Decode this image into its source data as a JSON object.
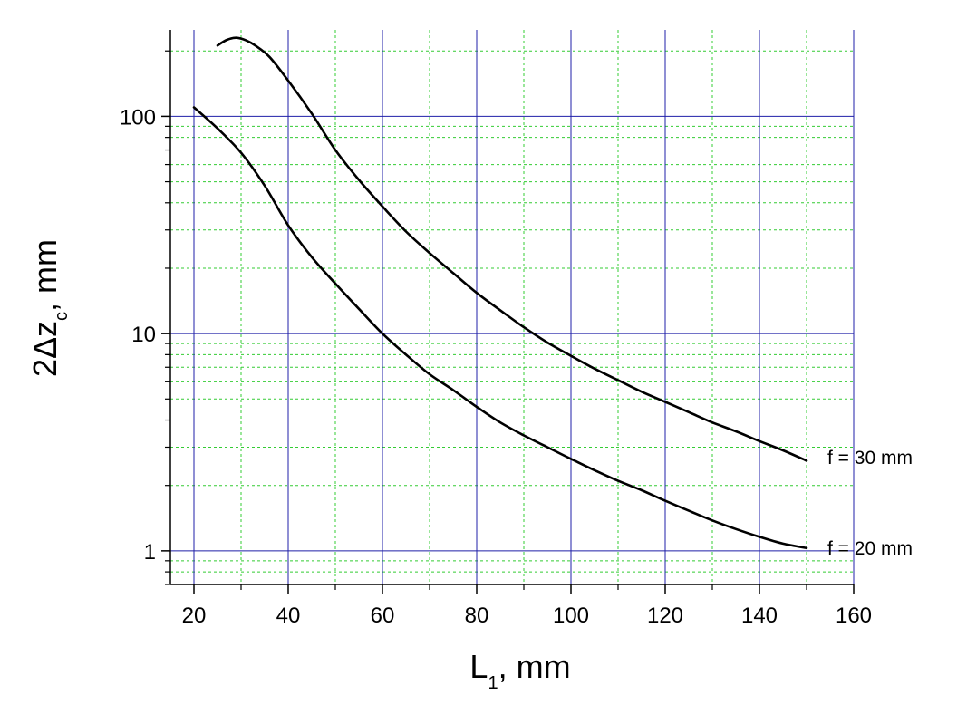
{
  "chart_data": {
    "type": "line",
    "title": "",
    "xlabel": {
      "main": "L",
      "sub": "1",
      "suffix": ", mm"
    },
    "ylabel": {
      "main": "2Δz",
      "sub": "c",
      "suffix": ", mm"
    },
    "xlim": [
      15,
      160
    ],
    "ylim": [
      0.7,
      250
    ],
    "yscale": "log",
    "x_ticks": [
      20,
      40,
      60,
      80,
      100,
      120,
      140,
      160
    ],
    "x_tick_labels": [
      "20",
      "40",
      "60",
      "80",
      "100",
      "120",
      "140",
      "160"
    ],
    "y_ticks": [
      1,
      10,
      100
    ],
    "y_tick_labels": [
      "1",
      "10",
      "100"
    ],
    "grid": {
      "major": true,
      "minor": true,
      "major_color": "#1f1fa8",
      "minor_color": "#33cc33"
    },
    "series": [
      {
        "name": "f = 30 mm",
        "color": "#000000",
        "x": [
          25,
          27,
          29,
          31,
          33,
          36,
          40,
          45,
          50,
          55,
          60,
          65,
          70,
          75,
          80,
          85,
          90,
          95,
          100,
          105,
          110,
          115,
          120,
          125,
          130,
          135,
          140,
          145,
          150
        ],
        "y": [
          212,
          225,
          230,
          224,
          212,
          188,
          146,
          103,
          70,
          51,
          38.5,
          29.5,
          23.5,
          19,
          15.4,
          12.8,
          10.7,
          9.1,
          7.9,
          6.9,
          6.1,
          5.4,
          4.85,
          4.35,
          3.9,
          3.55,
          3.2,
          2.9,
          2.6
        ]
      },
      {
        "name": "f = 20 mm",
        "color": "#000000",
        "x": [
          20,
          25,
          30,
          35,
          40,
          45,
          50,
          55,
          60,
          65,
          70,
          75,
          80,
          85,
          90,
          95,
          100,
          105,
          110,
          115,
          120,
          125,
          130,
          135,
          140,
          145,
          150
        ],
        "y": [
          110,
          88,
          68,
          48,
          31.5,
          22.5,
          17,
          13,
          10,
          8,
          6.5,
          5.5,
          4.6,
          3.9,
          3.4,
          3.0,
          2.65,
          2.35,
          2.1,
          1.9,
          1.7,
          1.53,
          1.38,
          1.26,
          1.16,
          1.08,
          1.03
        ]
      }
    ]
  }
}
